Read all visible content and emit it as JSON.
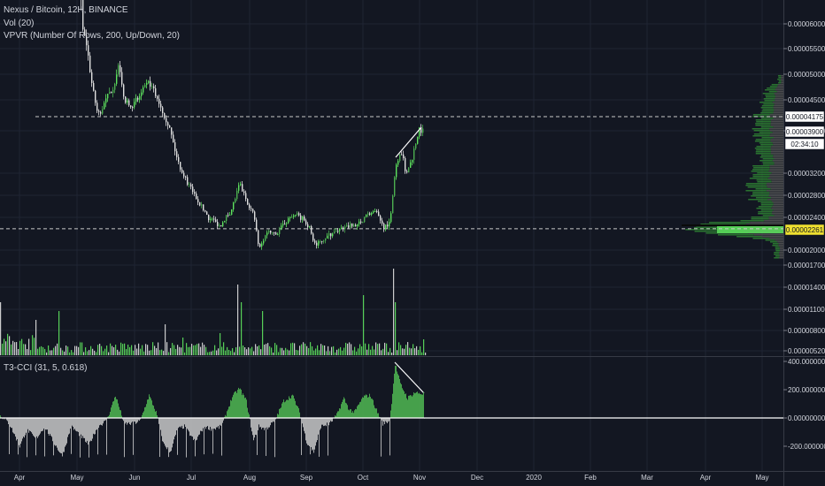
{
  "legend": {
    "main": "Nexus / Bitcoin, 12H, BINANCE",
    "vol": "Vol (20)",
    "vpvr": "VPVR (Number Of Rows, 200, Up/Down, 20)",
    "cci": "T3-CCI (31, 5, 0.618)"
  },
  "colors": {
    "background": "#131722",
    "up": "#4caf50",
    "up_bright": "#5ee35e",
    "down": "#e0e0e0",
    "grid": "#1f2433",
    "cci_pos": "#4caf50",
    "cci_neg": "#c8c8c8",
    "price_label_bg": "#ffffff",
    "poc_label_bg": "#f0e030"
  },
  "price_axis": {
    "ticks": [
      "0.00006000",
      "0.00005500",
      "0.00005000",
      "0.00004500",
      "0.00003900",
      "0.00003200",
      "0.00002800",
      "0.00002400",
      "0.00002000",
      "0.00001700",
      "0.00001400",
      "0.00001100",
      "0.00000800",
      "0.00000520"
    ],
    "labels": [
      {
        "text": "0.00004175",
        "kind": "white"
      },
      {
        "text": "0.00003900",
        "kind": "white"
      },
      {
        "text": "02:34:10",
        "kind": "white"
      },
      {
        "text": "0.00002261",
        "kind": "yellow"
      }
    ]
  },
  "cci_axis": {
    "ticks": [
      "400.00000000",
      "200.00000000",
      "0.00000000",
      "-200.00000000"
    ],
    "ylim": [
      -300,
      420
    ]
  },
  "time_axis": {
    "labels": [
      "Apr",
      "May",
      "Jun",
      "Jul",
      "Aug",
      "Sep",
      "Oct",
      "Nov",
      "Dec",
      "2020",
      "Feb",
      "Mar",
      "Apr",
      "May"
    ]
  },
  "chart_data": {
    "type": "candlestick",
    "price_levels": [
      4.175e-05,
      2.261e-05
    ],
    "close_series": [
      {
        "month": "Apr",
        "value": 6e-05
      },
      {
        "month": "May",
        "value": 4.4e-05
      },
      {
        "month": "Jun",
        "value": 4.55e-05
      },
      {
        "month": "Jul",
        "value": 2.65e-05
      },
      {
        "month": "Aug",
        "value": 2.3e-05
      },
      {
        "month": "Sep",
        "value": 2.15e-05
      },
      {
        "month": "Oct",
        "value": 2.4e-05
      },
      {
        "month": "Nov",
        "value": 3.92e-05
      }
    ],
    "cci_series": [
      {
        "month": "May",
        "value": -120
      },
      {
        "month": "Jun",
        "value": -150
      },
      {
        "month": "Jul",
        "value": -140
      },
      {
        "month": "Aug",
        "value": 160
      },
      {
        "month": "Sep",
        "value": -130
      },
      {
        "month": "Oct",
        "value": 120
      },
      {
        "month": "Nov",
        "value": 170
      }
    ]
  }
}
